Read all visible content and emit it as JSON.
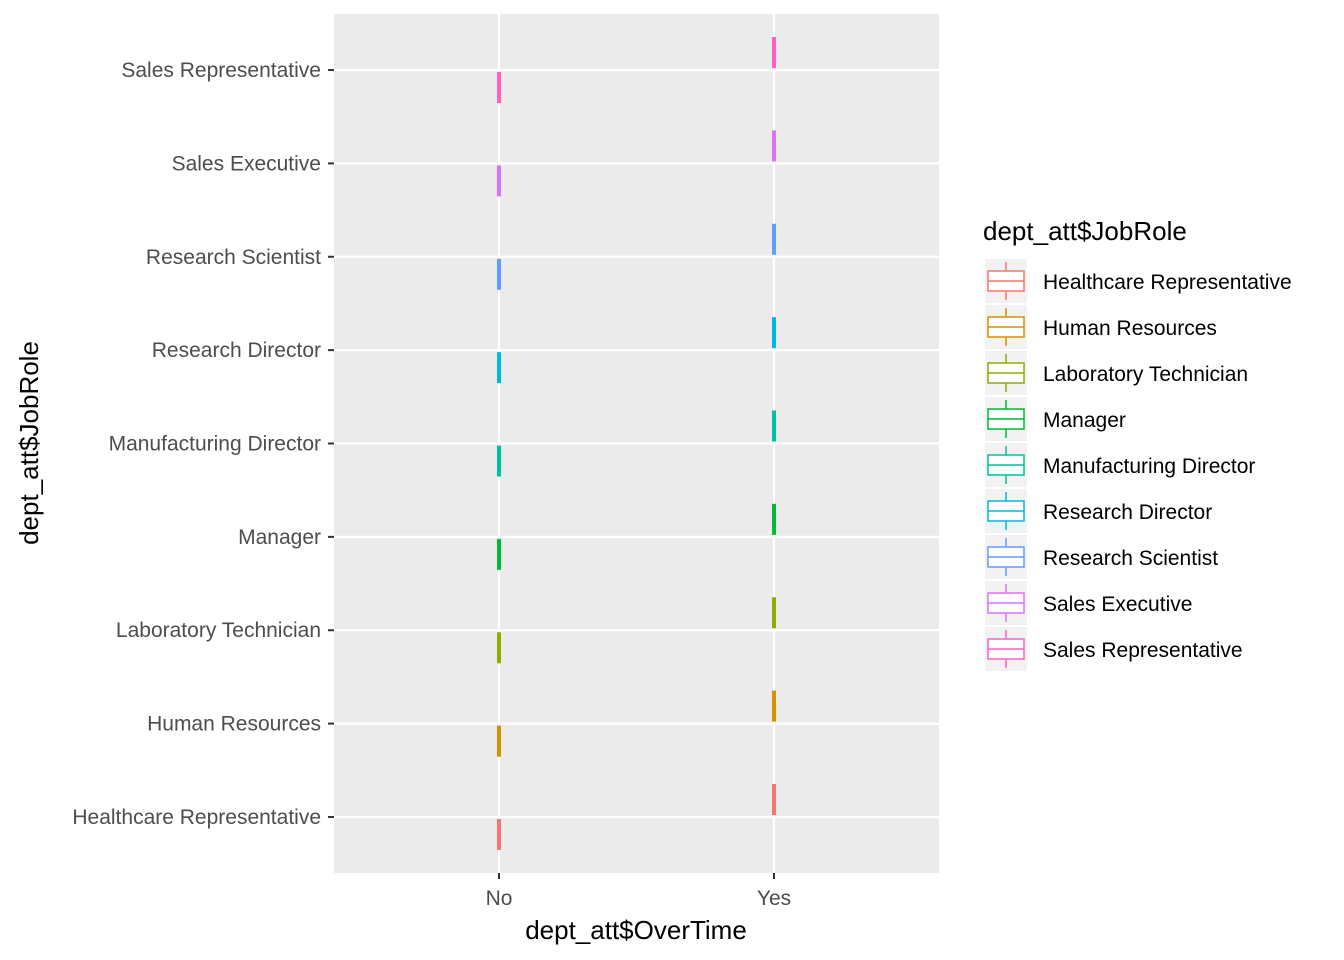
{
  "chart_data": {
    "type": "boxplot",
    "xlabel": "dept_att$OverTime",
    "ylabel": "dept_att$JobRole",
    "x_categories": [
      "No",
      "Yes"
    ],
    "y_categories": [
      "Healthcare Representative",
      "Human Resources",
      "Laboratory Technician",
      "Manager",
      "Manufacturing Director",
      "Research Director",
      "Research Scientist",
      "Sales Executive",
      "Sales Representative"
    ],
    "legend": {
      "title": "dept_att$JobRole",
      "position": "right",
      "entries": [
        {
          "label": "Healthcare Representative",
          "color": "#F8766D"
        },
        {
          "label": "Human Resources",
          "color": "#D39200"
        },
        {
          "label": "Laboratory Technician",
          "color": "#93AA00"
        },
        {
          "label": "Manager",
          "color": "#00BA38"
        },
        {
          "label": "Manufacturing Director",
          "color": "#00C19F"
        },
        {
          "label": "Research Director",
          "color": "#00B9E3"
        },
        {
          "label": "Research Scientist",
          "color": "#619CFF"
        },
        {
          "label": "Sales Executive",
          "color": "#DB72FB"
        },
        {
          "label": "Sales Representative",
          "color": "#FF61C3"
        }
      ]
    },
    "boxes": [
      {
        "x": "No",
        "y": "Healthcare Representative"
      },
      {
        "x": "Yes",
        "y": "Healthcare Representative"
      },
      {
        "x": "No",
        "y": "Human Resources"
      },
      {
        "x": "Yes",
        "y": "Human Resources"
      },
      {
        "x": "No",
        "y": "Laboratory Technician"
      },
      {
        "x": "Yes",
        "y": "Laboratory Technician"
      },
      {
        "x": "No",
        "y": "Manager"
      },
      {
        "x": "Yes",
        "y": "Manager"
      },
      {
        "x": "No",
        "y": "Manufacturing Director"
      },
      {
        "x": "Yes",
        "y": "Manufacturing Director"
      },
      {
        "x": "No",
        "y": "Research Director"
      },
      {
        "x": "Yes",
        "y": "Research Director"
      },
      {
        "x": "No",
        "y": "Research Scientist"
      },
      {
        "x": "Yes",
        "y": "Research Scientist"
      },
      {
        "x": "No",
        "y": "Sales Executive"
      },
      {
        "x": "Yes",
        "y": "Sales Executive"
      },
      {
        "x": "No",
        "y": "Sales Representative"
      },
      {
        "x": "Yes",
        "y": "Sales Representative"
      }
    ],
    "grid": true,
    "panel_background": "#EBEBEB"
  }
}
